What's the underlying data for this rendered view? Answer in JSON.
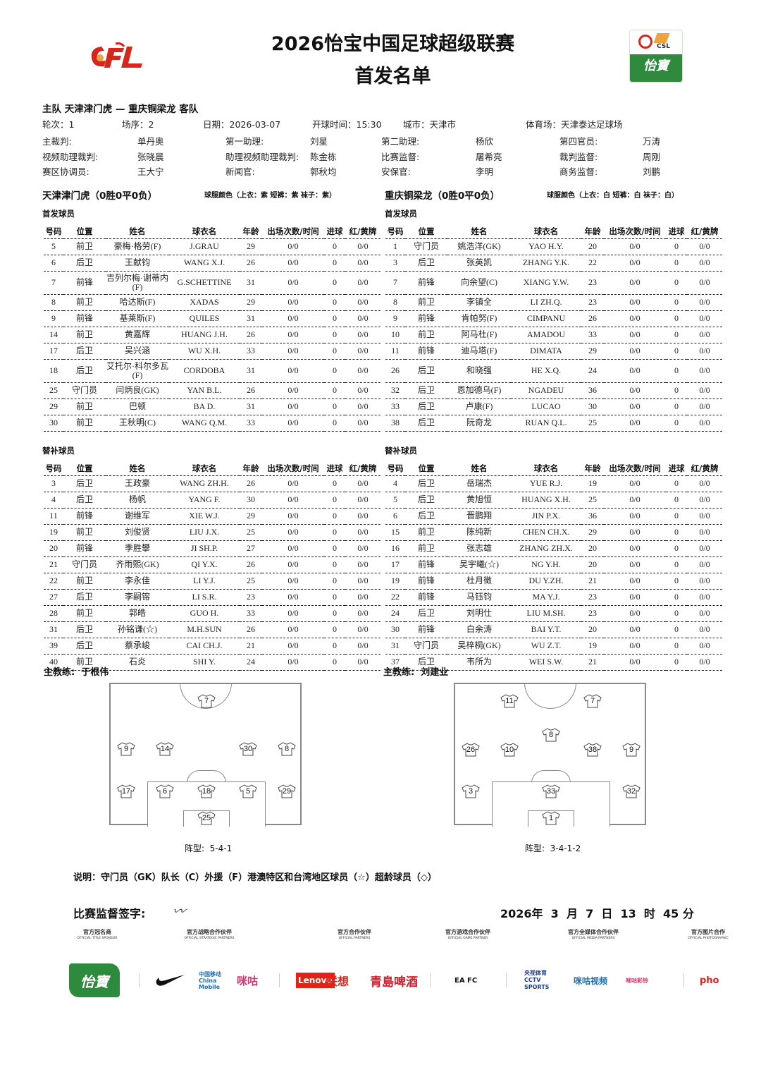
{
  "header": {
    "title": "2026怡宝中国足球超级联赛",
    "subtitle": "首发名单",
    "left_logo": "CFL",
    "right_logo": "CSL 怡寶"
  },
  "match": {
    "teams_line": "主队 天津津门虎 — 重庆铜梁龙 客队",
    "round": "轮次：1",
    "order": "场序：2",
    "date": "日期：2026-03-07",
    "kickoff": "开球时间：15:30",
    "city": "城市：天津市",
    "stadium": "体育场：天津泰达足球场"
  },
  "officials": [
    [
      [
        "主裁判:",
        "单丹奥"
      ],
      [
        "第一助理:",
        "刘星"
      ],
      [
        "第二助理:",
        "杨欣"
      ],
      [
        "第四官员:",
        "万涛"
      ]
    ],
    [
      [
        "视频助理裁判:",
        "张晓晨"
      ],
      [
        "助理视频助理裁判:",
        "陈金栋"
      ],
      [
        "比赛监督:",
        "屠希亮"
      ],
      [
        "裁判监督:",
        "周刚"
      ]
    ],
    [
      [
        "赛区协调员:",
        "王大宁"
      ],
      [
        "新闻官:",
        "郭秋均"
      ],
      [
        "安保官:",
        "李明"
      ],
      [
        "商务监督:",
        "刘鹏"
      ]
    ]
  ],
  "columns": [
    "号码",
    "位置",
    "姓名",
    "球衣名",
    "年龄",
    "出场次数/时间",
    "进球",
    "红/黄牌"
  ],
  "home": {
    "name": "天津津门虎（0胜0平0负）",
    "kit": "球服颜色（上衣：紫 短裤：紫 袜子：紫）",
    "starters_label": "首发球员",
    "subs_label": "替补球员",
    "starters": [
      [
        "5",
        "前卫",
        "豪梅·格劳(F)",
        "J.GRAU",
        "29",
        "0/0",
        "0",
        "0/0"
      ],
      [
        "6",
        "后卫",
        "王献钧",
        "WANG X.J.",
        "26",
        "0/0",
        "0",
        "0/0"
      ],
      [
        "7",
        "前锋",
        "吉列尔梅·谢蒂内(F)",
        "G.SCHETTINE",
        "31",
        "0/0",
        "0",
        "0/0"
      ],
      [
        "8",
        "前卫",
        "哈达斯(F)",
        "XADAS",
        "29",
        "0/0",
        "0",
        "0/0"
      ],
      [
        "9",
        "前锋",
        "基莱斯(F)",
        "QUILES",
        "31",
        "0/0",
        "0",
        "0/0"
      ],
      [
        "14",
        "前卫",
        "黄嘉辉",
        "HUANG J.H.",
        "26",
        "0/0",
        "0",
        "0/0"
      ],
      [
        "17",
        "后卫",
        "吴兴涵",
        "WU X.H.",
        "33",
        "0/0",
        "0",
        "0/0"
      ],
      [
        "18",
        "后卫",
        "艾托尔·科尔多瓦(F)",
        "CORDOBA",
        "31",
        "0/0",
        "0",
        "0/0"
      ],
      [
        "25",
        "守门员",
        "闫炳良(GK)",
        "YAN B.L.",
        "26",
        "0/0",
        "0",
        "0/0"
      ],
      [
        "29",
        "前卫",
        "巴顿",
        "BA D.",
        "31",
        "0/0",
        "0",
        "0/0"
      ],
      [
        "30",
        "前卫",
        "王秋明(C)",
        "WANG Q.M.",
        "33",
        "0/0",
        "0",
        "0/0"
      ]
    ],
    "subs": [
      [
        "3",
        "后卫",
        "王政豪",
        "WANG ZH.H.",
        "26",
        "0/0",
        "0",
        "0/0"
      ],
      [
        "4",
        "后卫",
        "杨帆",
        "YANG F.",
        "30",
        "0/0",
        "0",
        "0/0"
      ],
      [
        "11",
        "前锋",
        "谢维军",
        "XIE W.J.",
        "29",
        "0/0",
        "0",
        "0/0"
      ],
      [
        "19",
        "前卫",
        "刘俊贤",
        "LIU J.X.",
        "25",
        "0/0",
        "0",
        "0/0"
      ],
      [
        "20",
        "前锋",
        "季胜攀",
        "JI SH.P.",
        "27",
        "0/0",
        "0",
        "0/0"
      ],
      [
        "21",
        "守门员",
        "齐雨熙(GK)",
        "QI Y.X.",
        "26",
        "0/0",
        "0",
        "0/0"
      ],
      [
        "22",
        "前卫",
        "李永佳",
        "LI Y.J.",
        "25",
        "0/0",
        "0",
        "0/0"
      ],
      [
        "27",
        "后卫",
        "李嗣镕",
        "LI S.R.",
        "23",
        "0/0",
        "0",
        "0/0"
      ],
      [
        "28",
        "前卫",
        "郭皓",
        "GUO H.",
        "33",
        "0/0",
        "0",
        "0/0"
      ],
      [
        "31",
        "后卫",
        "孙铭谦(☆)",
        "M.H.SUN",
        "26",
        "0/0",
        "0",
        "0/0"
      ],
      [
        "39",
        "后卫",
        "蔡承峻",
        "CAI CH.J.",
        "21",
        "0/0",
        "0",
        "0/0"
      ],
      [
        "40",
        "前卫",
        "石炎",
        "SHI Y.",
        "24",
        "0/0",
        "0",
        "0/0"
      ]
    ],
    "coach": "主教练:  于根伟",
    "formation": "阵型:  5-4-1",
    "pitch_rows": [
      [
        "7"
      ],
      [
        "9",
        "14",
        "30",
        "8"
      ],
      [
        "17",
        "6",
        "18",
        "5",
        "29"
      ],
      [
        "25"
      ]
    ]
  },
  "away": {
    "name": "重庆铜梁龙（0胜0平0负）",
    "kit": "球服颜色（上衣：白 短裤：白 袜子：白）",
    "starters_label": "首发球员",
    "subs_label": "替补球员",
    "starters": [
      [
        "1",
        "守门员",
        "姚浩洋(GK)",
        "YAO H.Y.",
        "20",
        "0/0",
        "0",
        "0/0"
      ],
      [
        "3",
        "后卫",
        "张英凯",
        "ZHANG Y.K.",
        "22",
        "0/0",
        "0",
        "0/0"
      ],
      [
        "7",
        "前锋",
        "向余望(C)",
        "XIANG Y.W.",
        "23",
        "0/0",
        "0",
        "0/0"
      ],
      [
        "8",
        "前卫",
        "李镇全",
        "LI ZH.Q.",
        "23",
        "0/0",
        "0",
        "0/0"
      ],
      [
        "9",
        "前锋",
        "肯帕努(F)",
        "CIMPANU",
        "26",
        "0/0",
        "0",
        "0/0"
      ],
      [
        "10",
        "前卫",
        "阿马杜(F)",
        "AMADOU",
        "33",
        "0/0",
        "0",
        "0/0"
      ],
      [
        "11",
        "前锋",
        "迪马塔(F)",
        "DIMATA",
        "29",
        "0/0",
        "0",
        "0/0"
      ],
      [
        "26",
        "后卫",
        "和晓强",
        "HE X.Q.",
        "24",
        "0/0",
        "0",
        "0/0"
      ],
      [
        "32",
        "后卫",
        "恩加德乌(F)",
        "NGADEU",
        "36",
        "0/0",
        "0",
        "0/0"
      ],
      [
        "33",
        "后卫",
        "卢康(F)",
        "LUCAO",
        "30",
        "0/0",
        "0",
        "0/0"
      ],
      [
        "38",
        "后卫",
        "阮奇龙",
        "RUAN Q.L.",
        "25",
        "0/0",
        "0",
        "0/0"
      ]
    ],
    "subs": [
      [
        "4",
        "后卫",
        "岳瑞杰",
        "YUE R.J.",
        "19",
        "0/0",
        "0",
        "0/0"
      ],
      [
        "5",
        "后卫",
        "黄旭恒",
        "HUANG X.H.",
        "25",
        "0/0",
        "0",
        "0/0"
      ],
      [
        "6",
        "后卫",
        "晋鹏翔",
        "JIN P.X.",
        "36",
        "0/0",
        "0",
        "0/0"
      ],
      [
        "15",
        "前卫",
        "陈纯新",
        "CHEN CH.X.",
        "29",
        "0/0",
        "0",
        "0/0"
      ],
      [
        "16",
        "前卫",
        "张志雄",
        "ZHANG ZH.X.",
        "20",
        "0/0",
        "0",
        "0/0"
      ],
      [
        "17",
        "前锋",
        "吴宇曦(☆)",
        "NG Y.H.",
        "20",
        "0/0",
        "0",
        "0/0"
      ],
      [
        "19",
        "前锋",
        "杜月徵",
        "DU Y.ZH.",
        "21",
        "0/0",
        "0",
        "0/0"
      ],
      [
        "22",
        "前锋",
        "马钰钧",
        "MA Y.J.",
        "23",
        "0/0",
        "0",
        "0/0"
      ],
      [
        "24",
        "后卫",
        "刘明仕",
        "LIU M.SH.",
        "23",
        "0/0",
        "0",
        "0/0"
      ],
      [
        "30",
        "前锋",
        "白余涛",
        "BAI Y.T.",
        "20",
        "0/0",
        "0",
        "0/0"
      ],
      [
        "31",
        "守门员",
        "吴梓桐(GK)",
        "WU Z.T.",
        "19",
        "0/0",
        "0",
        "0/0"
      ],
      [
        "37",
        "后卫",
        "韦所为",
        "WEI S.W.",
        "21",
        "0/0",
        "0",
        "0/0"
      ]
    ],
    "coach": "主教练:  刘建业",
    "formation": "阵型:  3-4-1-2",
    "pitch_rows": [
      [
        "11",
        "7"
      ],
      [
        "8"
      ],
      [
        "26",
        "10",
        "38",
        "9"
      ],
      [
        "3",
        "33",
        "32"
      ],
      [
        "1"
      ]
    ]
  },
  "legend": "说明：守门员（GK）队长（C）外援（F）港澳特区和台湾地区球员（☆）超龄球员（◇）",
  "signature": {
    "label": "比赛监督签字:",
    "signer": "屠希亮",
    "datetime": "2026年  3  月  7  日  13  时  45 分"
  },
  "sponsor_labels": [
    [
      "官方冠名商",
      "OFFICIAL TITLE SPONSOR"
    ],
    [
      "官方战略合作伙伴",
      "OFFICIAL STRATEGIC PARTNERS"
    ],
    [
      "官方合作伙伴",
      "OFFICIAL PARTNERS"
    ],
    [
      "官方游戏合作伙伴",
      "OFFICIAL GAME PARTNER"
    ],
    [
      "官方全媒体合作伙伴",
      "OFFICIAL MEDIA PARTNERS"
    ],
    [
      "官方图片合作",
      "OFFICIAL PHOTOGRAPHIC"
    ]
  ],
  "sponsors": [
    "怡寶",
    "中国移动 China Mobile",
    "咪咕",
    "Lenovo",
    "联想",
    "青島啤酒",
    "EA FC",
    "央视体育 CCTV SPORTS",
    "咪咕视频",
    "咪咕彩铃",
    "pho"
  ],
  "colors": {
    "csl_green": "#2e8b3e",
    "cfl_red": "#d7261e",
    "lenovo_red": "#e2231a",
    "beer_red": "#d81e2c"
  }
}
